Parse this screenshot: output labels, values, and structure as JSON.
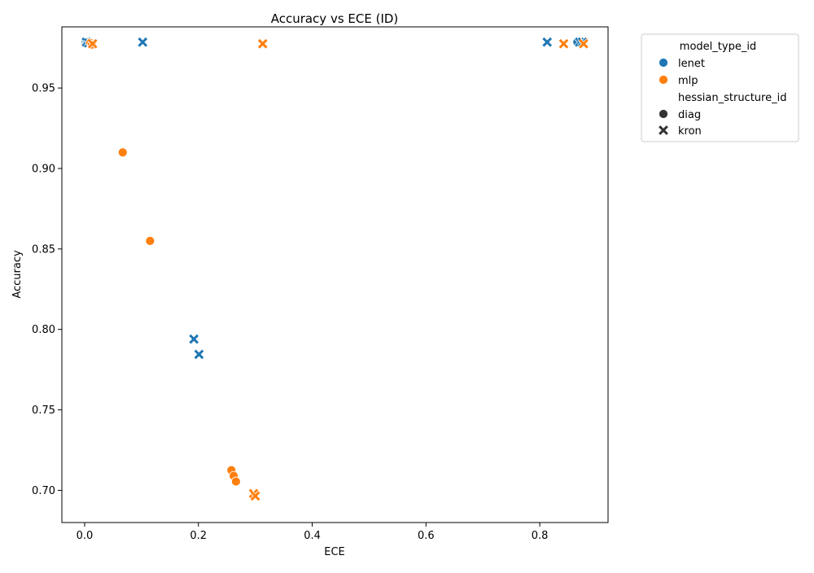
{
  "chart_data": {
    "type": "scatter",
    "title": "Accuracy vs ECE (ID)",
    "xlabel": "ECE",
    "ylabel": "Accuracy",
    "xlim": [
      -0.04,
      0.92
    ],
    "ylim": [
      0.68,
      0.988
    ],
    "x_ticks": [
      0.0,
      0.2,
      0.4,
      0.6,
      0.8
    ],
    "x_tick_labels": [
      "0.0",
      "0.2",
      "0.4",
      "0.6",
      "0.8"
    ],
    "y_ticks": [
      0.7,
      0.75,
      0.8,
      0.85,
      0.9,
      0.95
    ],
    "y_tick_labels": [
      "0.70",
      "0.75",
      "0.80",
      "0.85",
      "0.90",
      "0.95"
    ],
    "grid": false,
    "legend": {
      "placement": "outside-upper-right",
      "hue_title": "model_type_id",
      "hue_entries": [
        {
          "label": "lenet",
          "color": "#1f77b4"
        },
        {
          "label": "mlp",
          "color": "#ff7f0e"
        }
      ],
      "style_title": "hessian_structure_id",
      "style_entries": [
        {
          "label": "diag",
          "marker": "circle"
        },
        {
          "label": "kron",
          "marker": "x"
        }
      ]
    },
    "colors": {
      "lenet": "#1f77b4",
      "mlp": "#ff7f0e"
    },
    "points": [
      {
        "model": "lenet",
        "hessian": "diag",
        "x": 0.002,
        "y": 0.9785
      },
      {
        "model": "lenet",
        "hessian": "diag",
        "x": 0.004,
        "y": 0.9785
      },
      {
        "model": "lenet",
        "hessian": "kron",
        "x": 0.003,
        "y": 0.9785
      },
      {
        "model": "lenet",
        "hessian": "kron",
        "x": 0.007,
        "y": 0.978
      },
      {
        "model": "lenet",
        "hessian": "kron",
        "x": 0.102,
        "y": 0.9785
      },
      {
        "model": "lenet",
        "hessian": "kron",
        "x": 0.192,
        "y": 0.794
      },
      {
        "model": "lenet",
        "hessian": "kron",
        "x": 0.201,
        "y": 0.7845
      },
      {
        "model": "lenet",
        "hessian": "kron",
        "x": 0.813,
        "y": 0.9785
      },
      {
        "model": "lenet",
        "hessian": "diag",
        "x": 0.866,
        "y": 0.9785
      },
      {
        "model": "lenet",
        "hessian": "kron",
        "x": 0.87,
        "y": 0.9785
      },
      {
        "model": "lenet",
        "hessian": "kron",
        "x": 0.875,
        "y": 0.9785
      },
      {
        "model": "mlp",
        "hessian": "diag",
        "x": 0.01,
        "y": 0.978
      },
      {
        "model": "mlp",
        "hessian": "diag",
        "x": 0.013,
        "y": 0.977
      },
      {
        "model": "mlp",
        "hessian": "kron",
        "x": 0.014,
        "y": 0.9775
      },
      {
        "model": "mlp",
        "hessian": "diag",
        "x": 0.067,
        "y": 0.91
      },
      {
        "model": "mlp",
        "hessian": "diag",
        "x": 0.115,
        "y": 0.855
      },
      {
        "model": "mlp",
        "hessian": "diag",
        "x": 0.258,
        "y": 0.7125
      },
      {
        "model": "mlp",
        "hessian": "diag",
        "x": 0.262,
        "y": 0.709
      },
      {
        "model": "mlp",
        "hessian": "diag",
        "x": 0.266,
        "y": 0.7055
      },
      {
        "model": "mlp",
        "hessian": "kron",
        "x": 0.297,
        "y": 0.698
      },
      {
        "model": "mlp",
        "hessian": "kron",
        "x": 0.3,
        "y": 0.6965
      },
      {
        "model": "mlp",
        "hessian": "kron",
        "x": 0.313,
        "y": 0.9775
      },
      {
        "model": "mlp",
        "hessian": "kron",
        "x": 0.842,
        "y": 0.9775
      },
      {
        "model": "mlp",
        "hessian": "kron",
        "x": 0.877,
        "y": 0.9775
      }
    ]
  }
}
